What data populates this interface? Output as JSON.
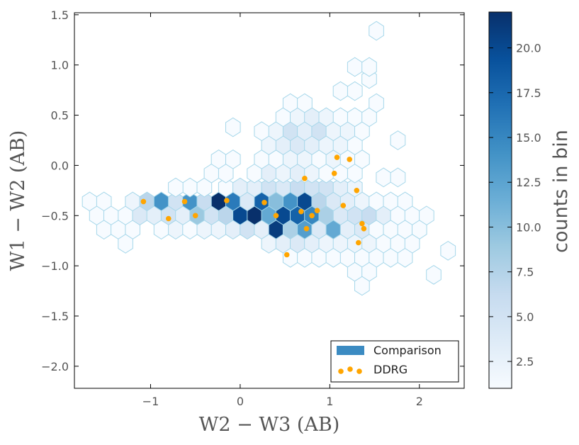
{
  "chart_data": {
    "type": "hexbin-scatter",
    "xlabel": "W2 − W3 (AB)",
    "ylabel": "W1 − W2 (AB)",
    "xlim": [
      -1.85,
      2.5
    ],
    "ylim": [
      -2.22,
      1.52
    ],
    "xticks": [
      -1,
      0,
      1,
      2
    ],
    "xtick_labels": [
      "−1",
      "0",
      "1",
      "2"
    ],
    "yticks": [
      1.5,
      1.0,
      0.5,
      0.0,
      -0.5,
      -1.0,
      -1.5,
      -2.0
    ],
    "ytick_labels": [
      "1.5",
      "1.0",
      "0.5",
      "0.0",
      "−0.5",
      "−1.0",
      "−1.5",
      "−2.0"
    ],
    "colorbar": {
      "label": "counts in bin",
      "range": [
        1,
        22
      ],
      "ticks": [
        2.5,
        5.0,
        7.5,
        10.0,
        12.5,
        15.0,
        17.5,
        20.0
      ],
      "tick_labels": [
        "2.5",
        "5.0",
        "7.5",
        "10.0",
        "12.5",
        "15.0",
        "17.5",
        "20.0"
      ],
      "colormap": [
        "#f7fbff",
        "#deebf7",
        "#c6dbef",
        "#9ecae1",
        "#6baed6",
        "#4292c6",
        "#2171b5",
        "#08519c",
        "#08306b"
      ]
    },
    "hex_grid": {
      "dx": 0.16,
      "dy": 0.142
    },
    "series": [
      {
        "name": "Comparison",
        "kind": "hexbin",
        "color": "#3b8bc2",
        "bins": [
          [
            -1.68,
            -0.36,
            1
          ],
          [
            -1.52,
            -0.36,
            1
          ],
          [
            -1.6,
            -0.5,
            1
          ],
          [
            -1.44,
            -0.5,
            1
          ],
          [
            -1.28,
            -0.5,
            1
          ],
          [
            -1.52,
            -0.64,
            1
          ],
          [
            -1.36,
            -0.64,
            1
          ],
          [
            -1.2,
            -0.64,
            1
          ],
          [
            -1.28,
            -0.78,
            1
          ],
          [
            -1.2,
            -0.36,
            2
          ],
          [
            -1.04,
            -0.36,
            7
          ],
          [
            -0.88,
            -0.36,
            14
          ],
          [
            -0.72,
            -0.36,
            5
          ],
          [
            -0.56,
            -0.36,
            14
          ],
          [
            -0.4,
            -0.36,
            6
          ],
          [
            -0.24,
            -0.36,
            22
          ],
          [
            -0.08,
            -0.36,
            16
          ],
          [
            0.08,
            -0.36,
            4
          ],
          [
            0.24,
            -0.36,
            18
          ],
          [
            0.4,
            -0.36,
            10
          ],
          [
            0.56,
            -0.36,
            14
          ],
          [
            0.72,
            -0.36,
            20
          ],
          [
            0.88,
            -0.36,
            7
          ],
          [
            1.04,
            -0.36,
            4
          ],
          [
            1.2,
            -0.36,
            3
          ],
          [
            1.36,
            -0.36,
            2
          ],
          [
            1.52,
            -0.36,
            1
          ],
          [
            1.68,
            -0.36,
            1
          ],
          [
            1.84,
            -0.36,
            1
          ],
          [
            -1.12,
            -0.5,
            4
          ],
          [
            -0.96,
            -0.5,
            3
          ],
          [
            -0.8,
            -0.5,
            5
          ],
          [
            -0.64,
            -0.5,
            3
          ],
          [
            -0.48,
            -0.5,
            9
          ],
          [
            -0.32,
            -0.5,
            5
          ],
          [
            -0.16,
            -0.5,
            7
          ],
          [
            0,
            -0.5,
            20
          ],
          [
            0.16,
            -0.5,
            22
          ],
          [
            0.32,
            -0.5,
            12
          ],
          [
            0.48,
            -0.5,
            20
          ],
          [
            0.64,
            -0.5,
            18
          ],
          [
            0.8,
            -0.5,
            15
          ],
          [
            0.96,
            -0.5,
            8
          ],
          [
            1.12,
            -0.5,
            4
          ],
          [
            1.28,
            -0.5,
            5
          ],
          [
            1.44,
            -0.5,
            6
          ],
          [
            1.6,
            -0.5,
            3
          ],
          [
            1.76,
            -0.5,
            1
          ],
          [
            1.92,
            -0.5,
            1
          ],
          [
            2.08,
            -0.5,
            1
          ],
          [
            -0.88,
            -0.64,
            1
          ],
          [
            -0.72,
            -0.64,
            2
          ],
          [
            -0.56,
            -0.64,
            1
          ],
          [
            -0.4,
            -0.64,
            2
          ],
          [
            -0.24,
            -0.64,
            2
          ],
          [
            -0.08,
            -0.64,
            3
          ],
          [
            0.08,
            -0.64,
            5
          ],
          [
            0.24,
            -0.64,
            3
          ],
          [
            0.4,
            -0.64,
            21
          ],
          [
            0.56,
            -0.64,
            8
          ],
          [
            0.72,
            -0.64,
            13
          ],
          [
            0.88,
            -0.64,
            4
          ],
          [
            1.04,
            -0.64,
            12
          ],
          [
            1.2,
            -0.64,
            3
          ],
          [
            1.36,
            -0.64,
            4
          ],
          [
            1.52,
            -0.64,
            1
          ],
          [
            1.68,
            -0.64,
            1
          ],
          [
            1.84,
            -0.64,
            1
          ],
          [
            2,
            -0.64,
            1
          ],
          [
            0.32,
            -0.78,
            2
          ],
          [
            0.48,
            -0.78,
            3
          ],
          [
            0.64,
            -0.78,
            4
          ],
          [
            0.8,
            -0.78,
            3
          ],
          [
            0.96,
            -0.78,
            2
          ],
          [
            1.12,
            -0.78,
            2
          ],
          [
            1.28,
            -0.78,
            2
          ],
          [
            1.44,
            -0.78,
            2
          ],
          [
            1.6,
            -0.78,
            1
          ],
          [
            1.76,
            -0.78,
            1
          ],
          [
            1.92,
            -0.78,
            1
          ],
          [
            0.56,
            -0.92,
            1
          ],
          [
            0.72,
            -0.92,
            1
          ],
          [
            0.88,
            -0.92,
            1
          ],
          [
            1.04,
            -0.92,
            1
          ],
          [
            1.2,
            -0.92,
            1
          ],
          [
            1.36,
            -0.92,
            1
          ],
          [
            1.52,
            -0.92,
            1
          ],
          [
            1.68,
            -0.92,
            1
          ],
          [
            1.84,
            -0.92,
            1
          ],
          [
            2.32,
            -0.85,
            1
          ],
          [
            1.28,
            -1.06,
            1
          ],
          [
            1.44,
            -1.06,
            1
          ],
          [
            1.36,
            -1.2,
            1
          ],
          [
            2.16,
            -1.09,
            1
          ],
          [
            -0.16,
            -0.22,
            1
          ],
          [
            0,
            -0.22,
            3
          ],
          [
            0.16,
            -0.22,
            3
          ],
          [
            0.32,
            -0.22,
            5
          ],
          [
            0.48,
            -0.22,
            4
          ],
          [
            0.64,
            -0.22,
            6
          ],
          [
            0.8,
            -0.22,
            5
          ],
          [
            0.96,
            -0.22,
            5
          ],
          [
            1.12,
            -0.22,
            3
          ],
          [
            1.28,
            -0.22,
            2
          ],
          [
            -0.56,
            -0.22,
            1
          ],
          [
            -0.4,
            -0.22,
            1
          ],
          [
            -0.72,
            -0.22,
            1
          ],
          [
            -0.32,
            -0.08,
            1
          ],
          [
            -0.16,
            -0.08,
            1
          ],
          [
            0.16,
            -0.08,
            1
          ],
          [
            0.32,
            -0.08,
            3
          ],
          [
            0.48,
            -0.08,
            2
          ],
          [
            0.64,
            -0.08,
            3
          ],
          [
            0.8,
            -0.08,
            2
          ],
          [
            0.96,
            -0.08,
            1
          ],
          [
            1.12,
            -0.08,
            1
          ],
          [
            1.28,
            -0.08,
            1
          ],
          [
            1.6,
            -0.12,
            1
          ],
          [
            1.76,
            -0.12,
            1
          ],
          [
            -0.24,
            0.06,
            1
          ],
          [
            -0.08,
            0.06,
            1
          ],
          [
            0.24,
            0.06,
            1
          ],
          [
            0.4,
            0.06,
            1
          ],
          [
            0.56,
            0.06,
            2
          ],
          [
            0.72,
            0.06,
            2
          ],
          [
            0.88,
            0.06,
            1
          ],
          [
            1.04,
            0.06,
            2
          ],
          [
            1.2,
            0.06,
            1
          ],
          [
            1.36,
            0.06,
            1
          ],
          [
            0.32,
            0.2,
            2
          ],
          [
            0.48,
            0.2,
            3
          ],
          [
            0.64,
            0.2,
            4
          ],
          [
            0.8,
            0.2,
            3
          ],
          [
            0.96,
            0.2,
            2
          ],
          [
            1.12,
            0.2,
            2
          ],
          [
            1.28,
            0.2,
            1
          ],
          [
            1.76,
            0.25,
            1
          ],
          [
            -0.08,
            0.38,
            1
          ],
          [
            0.24,
            0.34,
            1
          ],
          [
            0.4,
            0.34,
            2
          ],
          [
            0.56,
            0.34,
            5
          ],
          [
            0.72,
            0.34,
            3
          ],
          [
            0.88,
            0.34,
            5
          ],
          [
            1.04,
            0.34,
            2
          ],
          [
            1.2,
            0.34,
            2
          ],
          [
            1.36,
            0.34,
            1
          ],
          [
            0.48,
            0.48,
            1
          ],
          [
            0.64,
            0.48,
            2
          ],
          [
            0.8,
            0.48,
            3
          ],
          [
            0.96,
            0.48,
            2
          ],
          [
            1.12,
            0.48,
            1
          ],
          [
            1.28,
            0.48,
            1
          ],
          [
            1.44,
            0.48,
            1
          ],
          [
            0.56,
            0.62,
            1
          ],
          [
            0.72,
            0.62,
            1
          ],
          [
            1.52,
            0.62,
            1
          ],
          [
            1.12,
            0.74,
            1
          ],
          [
            1.28,
            0.74,
            1
          ],
          [
            1.44,
            0.86,
            1
          ],
          [
            1.28,
            0.98,
            1
          ],
          [
            1.44,
            0.98,
            1
          ],
          [
            1.52,
            1.34,
            1
          ]
        ]
      },
      {
        "name": "DDRG",
        "kind": "scatter",
        "color": "#ffa500",
        "points": [
          [
            -1.08,
            -0.36
          ],
          [
            -0.8,
            -0.53
          ],
          [
            -0.62,
            -0.36
          ],
          [
            -0.5,
            -0.5
          ],
          [
            -0.15,
            -0.35
          ],
          [
            0.27,
            -0.37
          ],
          [
            0.4,
            -0.5
          ],
          [
            0.52,
            -0.89
          ],
          [
            0.68,
            -0.46
          ],
          [
            0.72,
            -0.13
          ],
          [
            0.74,
            -0.63
          ],
          [
            0.8,
            -0.5
          ],
          [
            0.86,
            -0.45
          ],
          [
            1.05,
            -0.08
          ],
          [
            1.08,
            0.08
          ],
          [
            1.15,
            -0.4
          ],
          [
            1.22,
            0.06
          ],
          [
            1.3,
            -0.25
          ],
          [
            1.32,
            -0.77
          ],
          [
            1.36,
            -0.58
          ],
          [
            1.38,
            -0.63
          ]
        ]
      }
    ],
    "legend": [
      "Comparison",
      "DDRG"
    ],
    "legend_position": "lower-right"
  }
}
